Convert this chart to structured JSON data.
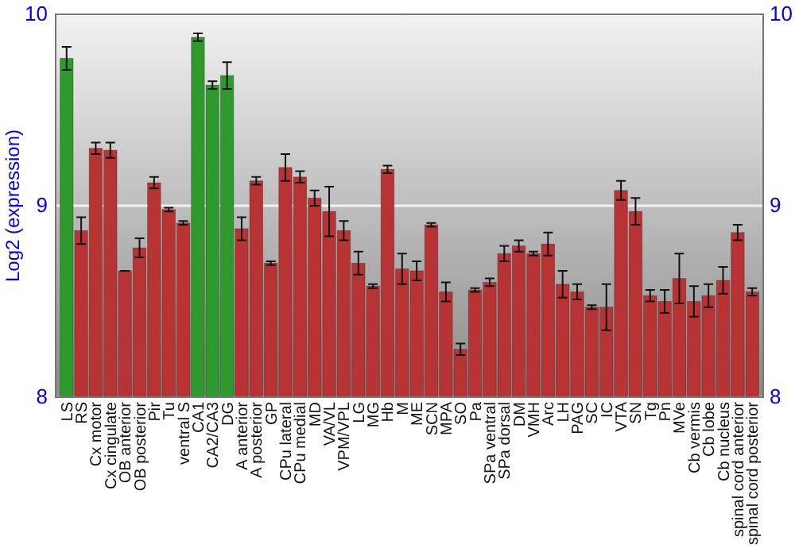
{
  "chart_data": {
    "type": "bar",
    "ylabel": "Log2 (expression)",
    "categories": [
      "LS",
      "RS",
      "Cx motor",
      "Cx cingulate",
      "OB anterior",
      "OB posterior",
      "Pir",
      "Tu",
      "ventral S",
      "CA1",
      "CA2/CA3",
      "DG",
      "A anterior",
      "A posterior",
      "GP",
      "CPu lateral",
      "CPu medial",
      "MD",
      "VA/VL",
      "VPM/VPL",
      "LG",
      "MG",
      "Hb",
      "M",
      "ME",
      "SCN",
      "MPA",
      "SO",
      "Pa",
      "SPa ventral",
      "SPa dorsal",
      "DM",
      "VMH",
      "Arc",
      "LH",
      "PAG",
      "SC",
      "IC",
      "VTA",
      "SN",
      "Tg",
      "Pn",
      "MVe",
      "Cb vermis",
      "Cb lobe",
      "Cb nucleus",
      "spinal cord anterior",
      "spinal cord posterior"
    ],
    "values": [
      9.77,
      8.87,
      9.3,
      9.29,
      8.66,
      8.78,
      9.12,
      8.98,
      8.91,
      9.88,
      9.63,
      9.68,
      8.88,
      9.13,
      8.7,
      9.2,
      9.15,
      9.04,
      8.97,
      8.87,
      8.7,
      8.58,
      9.19,
      8.67,
      8.66,
      8.9,
      8.55,
      8.25,
      8.56,
      8.6,
      8.75,
      8.79,
      8.75,
      8.8,
      8.59,
      8.55,
      8.47,
      8.47,
      9.08,
      8.97,
      8.53,
      8.5,
      8.62,
      8.5,
      8.53,
      8.61,
      8.86,
      8.55
    ],
    "errors": [
      0.06,
      0.07,
      0.03,
      0.04,
      0,
      0.05,
      0.03,
      0.01,
      0.01,
      0.02,
      0.02,
      0.07,
      0.06,
      0.02,
      0.01,
      0.07,
      0.03,
      0.04,
      0.13,
      0.05,
      0.06,
      0.01,
      0.02,
      0.08,
      0.05,
      0.01,
      0.05,
      0.03,
      0.01,
      0.02,
      0.04,
      0.03,
      0.01,
      0.06,
      0.07,
      0.04,
      0.01,
      0.12,
      0.05,
      0.07,
      0.03,
      0.06,
      0.13,
      0.08,
      0.06,
      0.07,
      0.04,
      0.02
    ],
    "colors": [
      "#2e9a2e",
      "#b83434",
      "#b83434",
      "#b83434",
      "#b83434",
      "#b83434",
      "#b83434",
      "#b83434",
      "#b83434",
      "#2e9a2e",
      "#2e9a2e",
      "#2e9a2e",
      "#b83434",
      "#b83434",
      "#b83434",
      "#b83434",
      "#b83434",
      "#b83434",
      "#b83434",
      "#b83434",
      "#b83434",
      "#b83434",
      "#b83434",
      "#b83434",
      "#b83434",
      "#b83434",
      "#b83434",
      "#b83434",
      "#b83434",
      "#b83434",
      "#b83434",
      "#b83434",
      "#b83434",
      "#b83434",
      "#b83434",
      "#b83434",
      "#b83434",
      "#b83434",
      "#b83434",
      "#b83434",
      "#b83434",
      "#b83434",
      "#b83434",
      "#b83434",
      "#b83434",
      "#b83434",
      "#b83434",
      "#b83434"
    ],
    "ylim": [
      8,
      10
    ],
    "yticks": [
      8,
      9,
      10
    ],
    "y2lim": [
      8,
      10
    ],
    "y2ticks": [
      8,
      9,
      10
    ],
    "grid": "y"
  }
}
